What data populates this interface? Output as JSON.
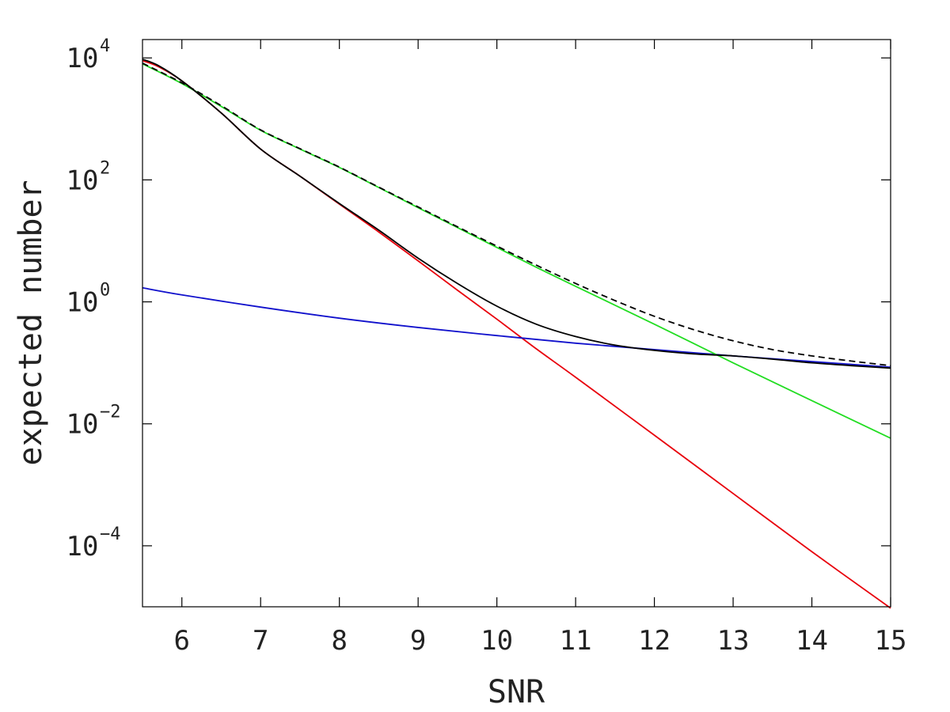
{
  "chart_data": {
    "type": "line",
    "title": "",
    "xlabel": "SNR",
    "ylabel": "expected number",
    "xlim": [
      5.5,
      15
    ],
    "ylim": [
      1e-05,
      20000
    ],
    "yscale": "log",
    "grid": false,
    "legend": "none",
    "x_ticks": [
      {
        "value": 6,
        "label": "6"
      },
      {
        "value": 7,
        "label": "7"
      },
      {
        "value": 8,
        "label": "8"
      },
      {
        "value": 9,
        "label": "9"
      },
      {
        "value": 10,
        "label": "10"
      },
      {
        "value": 11,
        "label": "11"
      },
      {
        "value": 12,
        "label": "12"
      },
      {
        "value": 13,
        "label": "13"
      },
      {
        "value": 14,
        "label": "14"
      },
      {
        "value": 15,
        "label": "15"
      }
    ],
    "y_ticks": [
      {
        "value": 10000,
        "base": "10",
        "exp": "4"
      },
      {
        "value": 100,
        "base": "10",
        "exp": "2"
      },
      {
        "value": 1,
        "base": "10",
        "exp": "0"
      },
      {
        "value": 0.01,
        "base": "10",
        "exp": "−2"
      },
      {
        "value": 0.0001,
        "base": "10",
        "exp": "−4"
      }
    ],
    "series": [
      {
        "color": "#e8000b",
        "dash": "solid",
        "x": [
          5.5,
          5.7,
          6.0,
          6.5,
          7.0,
          7.5,
          8.0,
          8.5,
          9.0,
          9.5,
          10.0,
          10.5,
          11.0,
          12.0,
          13.0,
          14.0,
          15.0
        ],
        "y": [
          9000,
          7200,
          4200,
          1250,
          320,
          115,
          40,
          14,
          4.7,
          1.55,
          0.52,
          0.17,
          0.058,
          0.0065,
          0.00072,
          8e-05,
          9.5e-06
        ]
      },
      {
        "color": "#1111cc",
        "dash": "solid",
        "x": [
          5.5,
          6.0,
          7.0,
          8.0,
          9.0,
          10.0,
          11.0,
          12.0,
          13.0,
          14.0,
          15.0
        ],
        "y": [
          1.7,
          1.3,
          0.82,
          0.54,
          0.38,
          0.28,
          0.21,
          0.165,
          0.13,
          0.105,
          0.085
        ]
      },
      {
        "color": "#22dd22",
        "dash": "solid",
        "x": [
          5.5,
          6.0,
          6.5,
          7.0,
          7.5,
          8.0,
          8.5,
          9.0,
          9.5,
          10.0,
          10.5,
          11.0,
          12.0,
          13.0,
          14.0,
          15.0
        ],
        "y": [
          8000,
          3800,
          1600,
          650,
          320,
          160,
          75,
          35,
          16.5,
          7.8,
          3.7,
          1.8,
          0.43,
          0.1,
          0.024,
          0.0058
        ]
      },
      {
        "color": "#000000",
        "dash": "dashed",
        "x": [
          5.5,
          6.0,
          6.5,
          7.0,
          7.5,
          8.0,
          8.5,
          9.0,
          9.5,
          10.0,
          10.5,
          11.0,
          11.5,
          12.0,
          12.5,
          13.0,
          13.5,
          14.0,
          14.5,
          15.0
        ],
        "y": [
          8200,
          3900,
          1650,
          660,
          325,
          162,
          76,
          36,
          17,
          8.2,
          4.0,
          2.0,
          1.05,
          0.58,
          0.35,
          0.23,
          0.165,
          0.13,
          0.107,
          0.09
        ]
      },
      {
        "color": "#000000",
        "dash": "solid",
        "x": [
          5.5,
          5.7,
          6.0,
          6.5,
          7.0,
          7.5,
          8.0,
          8.5,
          9.0,
          9.5,
          10.0,
          10.5,
          11.0,
          11.5,
          12.0,
          12.5,
          13.0,
          13.5,
          14.0,
          14.5,
          15.0
        ],
        "y": [
          9500,
          7500,
          4200,
          1250,
          320,
          115,
          41,
          15,
          5.2,
          2.0,
          0.85,
          0.43,
          0.27,
          0.195,
          0.16,
          0.14,
          0.13,
          0.115,
          0.1,
          0.09,
          0.082
        ]
      }
    ]
  }
}
